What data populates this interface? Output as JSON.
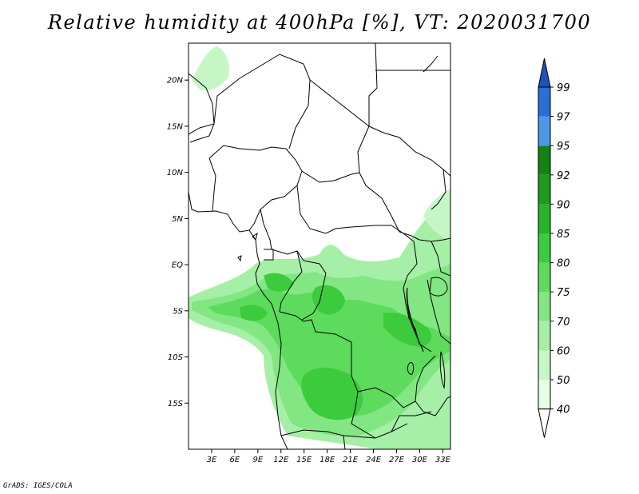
{
  "title": "Relative humidity at 400hPa [%], VT: 2020031700",
  "credit": "GrADS: IGES/COLA",
  "map": {
    "lon_range": [
      0,
      34
    ],
    "lat_range": [
      -20,
      24
    ],
    "lat_ticks": [
      {
        "value": 20,
        "label": "20N"
      },
      {
        "value": 15,
        "label": "15N"
      },
      {
        "value": 10,
        "label": "10N"
      },
      {
        "value": 5,
        "label": "5N"
      },
      {
        "value": 0,
        "label": "EQ"
      },
      {
        "value": -5,
        "label": "5S"
      },
      {
        "value": -10,
        "label": "10S"
      },
      {
        "value": -15,
        "label": "15S"
      }
    ],
    "lon_ticks": [
      {
        "value": 3,
        "label": "3E"
      },
      {
        "value": 6,
        "label": "6E"
      },
      {
        "value": 9,
        "label": "9E"
      },
      {
        "value": 12,
        "label": "12E"
      },
      {
        "value": 15,
        "label": "15E"
      },
      {
        "value": 18,
        "label": "18E"
      },
      {
        "value": 21,
        "label": "21E"
      },
      {
        "value": 24,
        "label": "24E"
      },
      {
        "value": 27,
        "label": "27E"
      },
      {
        "value": 30,
        "label": "30E"
      },
      {
        "value": 33,
        "label": "33E"
      }
    ]
  },
  "colorbar": {
    "labels": [
      "40",
      "50",
      "60",
      "70",
      "75",
      "80",
      "85",
      "90",
      "92",
      "95",
      "97",
      "99"
    ],
    "colors": [
      "#ffffff",
      "#e6fde6",
      "#c6f6c6",
      "#a6efa6",
      "#82e682",
      "#5cdb5c",
      "#3ccb3c",
      "#28b428",
      "#1e9b1e",
      "#148214",
      "#4a98e6",
      "#2a6ed6",
      "#1e50be"
    ]
  }
}
